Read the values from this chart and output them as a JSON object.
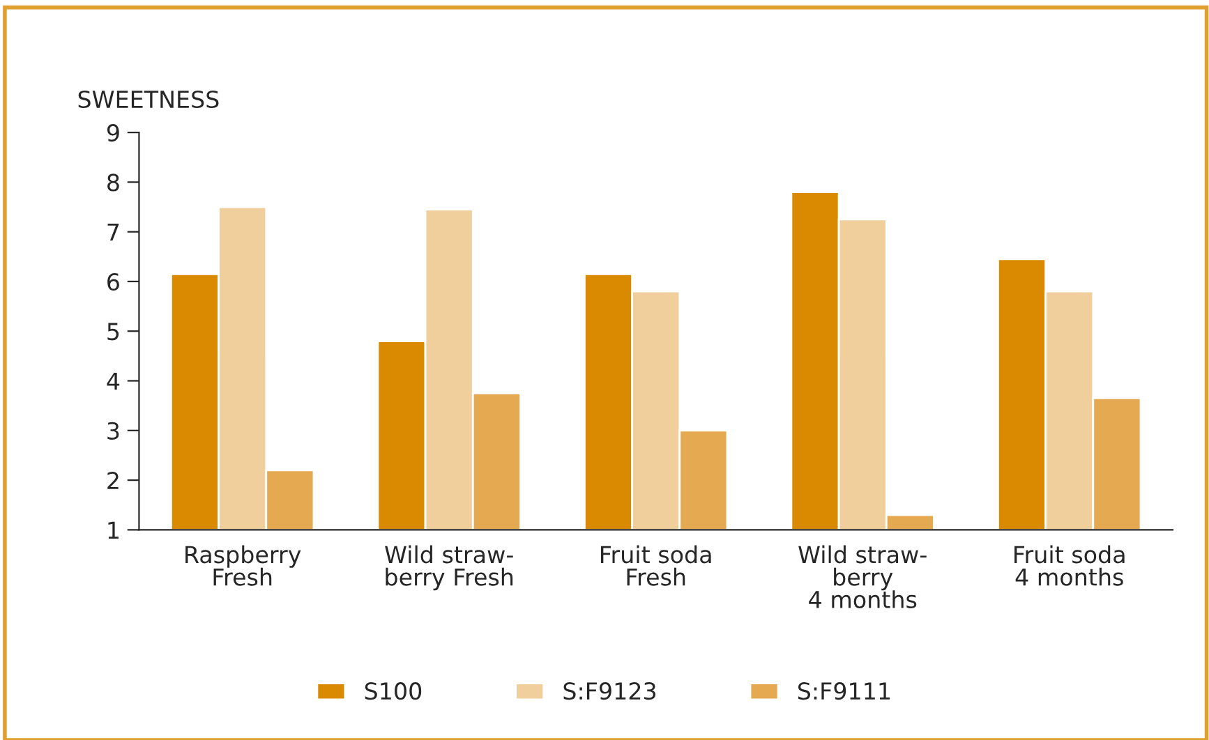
{
  "chart_data": {
    "type": "bar",
    "ylabel": "SWEETNESS",
    "categories": [
      "Raspberry\nFresh",
      "Wild straw-\nberry Fresh",
      "Fruit soda\nFresh",
      "Wild straw-\nberry\n4 months",
      "Fruit soda\n4 months"
    ],
    "series": [
      {
        "name": "S100",
        "color": "#d98a00",
        "values": [
          6.15,
          4.8,
          6.15,
          7.8,
          6.45
        ]
      },
      {
        "name": "S:F9123",
        "color": "#f0cf9c",
        "values": [
          7.5,
          7.45,
          5.8,
          7.25,
          5.8
        ]
      },
      {
        "name": "S:F9111",
        "color": "#e5a952",
        "values": [
          2.2,
          3.75,
          3.0,
          1.3,
          3.65
        ]
      }
    ],
    "ylim": [
      1,
      9
    ],
    "yticks": [
      1,
      2,
      3,
      4,
      5,
      6,
      7,
      8,
      9
    ],
    "grid": false,
    "legend": "bottom"
  }
}
